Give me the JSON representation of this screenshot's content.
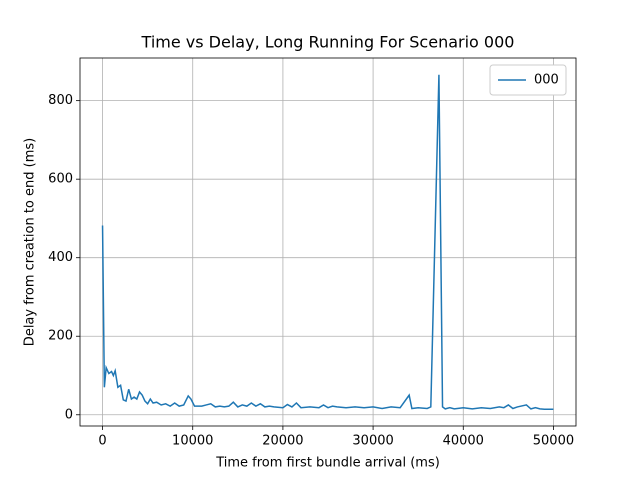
{
  "chart_data": {
    "type": "line",
    "title": "Time vs Delay, Long Running For Scenario 000",
    "x_label": "Time from first bundle arrival (ms)",
    "y_label": "Delay from creation to end (ms)",
    "x": [
      0,
      200,
      400,
      700,
      1000,
      1200,
      1400,
      1700,
      2000,
      2300,
      2600,
      2900,
      3200,
      3500,
      3800,
      4100,
      4400,
      4700,
      5000,
      5300,
      5600,
      6000,
      6500,
      7000,
      7500,
      8000,
      8500,
      9000,
      9500,
      9800,
      10200,
      11000,
      11500,
      12000,
      12500,
      13000,
      13500,
      14000,
      14500,
      15000,
      15500,
      16000,
      16500,
      17000,
      17500,
      18000,
      18500,
      19000,
      20000,
      20500,
      21000,
      21500,
      22000,
      23000,
      24000,
      24500,
      25000,
      25500,
      26000,
      27000,
      28000,
      29000,
      30000,
      31000,
      32000,
      33000,
      34000,
      34300,
      35000,
      36000,
      36400,
      37300,
      37700,
      38000,
      38500,
      39000,
      40000,
      41000,
      42000,
      43000,
      44000,
      44500,
      45000,
      45500,
      46000,
      47000,
      47500,
      48000,
      48500,
      49000,
      50000
    ],
    "series": [
      {
        "name": "000",
        "color": "#1f77b4",
        "values": [
          482,
          70,
          120,
          105,
          110,
          100,
          112,
          70,
          75,
          38,
          35,
          65,
          40,
          45,
          40,
          58,
          50,
          35,
          28,
          40,
          30,
          32,
          25,
          28,
          22,
          30,
          22,
          25,
          48,
          40,
          22,
          22,
          25,
          28,
          20,
          22,
          20,
          22,
          32,
          20,
          25,
          22,
          30,
          22,
          28,
          20,
          22,
          20,
          18,
          26,
          20,
          30,
          18,
          20,
          18,
          25,
          18,
          22,
          20,
          18,
          20,
          18,
          20,
          16,
          20,
          18,
          50,
          16,
          18,
          16,
          20,
          866,
          20,
          15,
          18,
          15,
          18,
          15,
          18,
          16,
          20,
          18,
          25,
          16,
          20,
          25,
          15,
          18,
          15,
          14,
          14
        ]
      }
    ],
    "xlim": [
      -2500,
      52500
    ],
    "ylim": [
      -28.6,
      908.6
    ],
    "xticks": [
      0,
      10000,
      20000,
      30000,
      40000,
      50000
    ],
    "yticks": [
      0,
      200,
      400,
      600,
      800
    ],
    "grid": true,
    "legend": "upper-right"
  }
}
